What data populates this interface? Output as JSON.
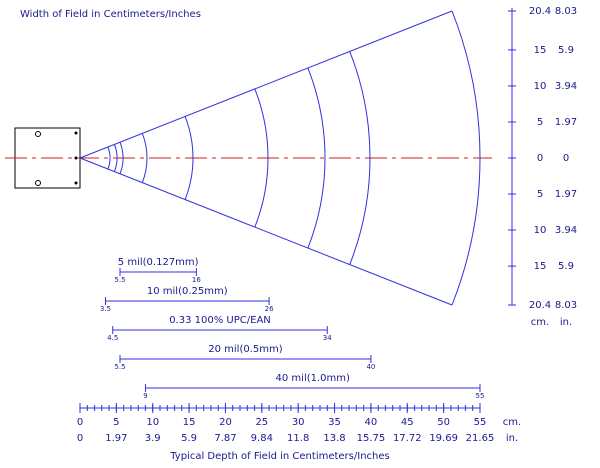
{
  "top_title": "Width of Field in Centimeters/Inches",
  "width_scale": {
    "cm": [
      20.4,
      15,
      10,
      5,
      0,
      5,
      10,
      15,
      20.4
    ],
    "in": [
      8.03,
      5.9,
      3.94,
      1.97,
      0,
      1.97,
      3.94,
      5.9,
      8.03
    ],
    "cm_unit": "cm.",
    "in_unit": "in."
  },
  "ranges": [
    {
      "label": "5 mil(0.127mm)",
      "start": 5.5,
      "end": 16
    },
    {
      "label": "10 mil(0.25mm)",
      "start": 3.5,
      "end": 26
    },
    {
      "label": "0.33 100% UPC/EAN",
      "start": 4.5,
      "end": 34
    },
    {
      "label": "20 mil(0.5mm)",
      "start": 5.5,
      "end": 40
    },
    {
      "label": "40 mil(1.0mm)",
      "start": 9,
      "end": 55
    }
  ],
  "depth_scale": {
    "cm": [
      0,
      5,
      10,
      15,
      20,
      25,
      30,
      35,
      40,
      45,
      50,
      55
    ],
    "in": [
      0,
      1.97,
      3.9,
      5.9,
      7.87,
      9.84,
      11.8,
      13.8,
      15.75,
      17.72,
      19.69,
      21.65
    ],
    "cm_unit": "cm.",
    "in_unit": "in."
  },
  "bottom_title": "Typical Depth of Field in Centimeters/Inches"
}
